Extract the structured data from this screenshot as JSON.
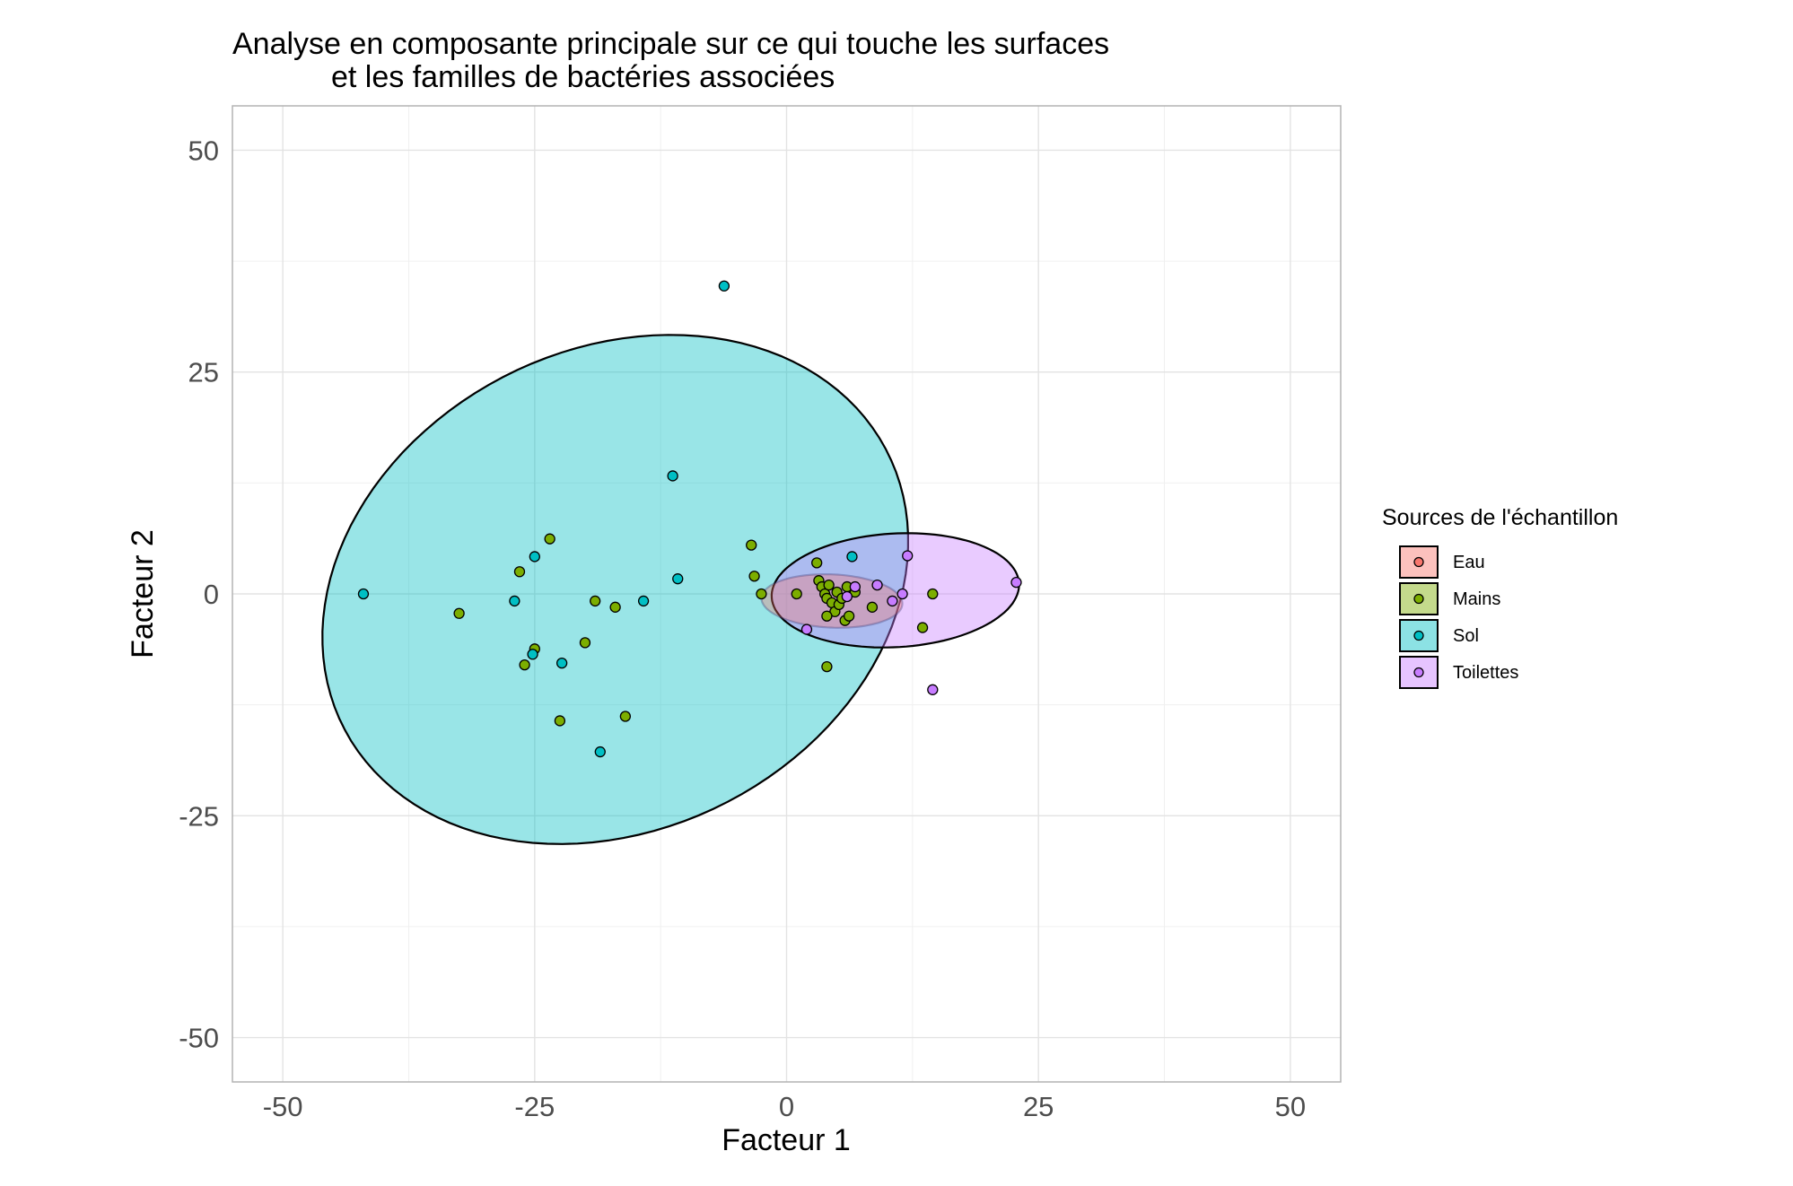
{
  "chart_data": {
    "type": "scatter",
    "title_lines": [
      "Analyse en composante principale sur ce qui touche les surfaces",
      "et les familles de bactéries associées"
    ],
    "xlabel": "Facteur 1",
    "ylabel": "Facteur 2",
    "xlim": [
      -55,
      55
    ],
    "ylim": [
      -55,
      55
    ],
    "xticks": [
      -50,
      -25,
      0,
      25,
      50
    ],
    "yticks": [
      -50,
      -25,
      0,
      25,
      50
    ],
    "grid": true,
    "legend": {
      "title": "Sources de l'échantillon",
      "placement": "right"
    },
    "series": [
      {
        "name": "Eau",
        "color": "#F8766D",
        "points": [],
        "ellipse": {
          "cx": 4.5,
          "cy": -0.8,
          "rx": 7.0,
          "ry": 3.0,
          "angle": -3
        }
      },
      {
        "name": "Mains",
        "color": "#7CAE00",
        "points": [
          [
            -32.5,
            -2.2
          ],
          [
            -26.5,
            2.5
          ],
          [
            -23.5,
            6.2
          ],
          [
            -26.0,
            -8.0
          ],
          [
            -25.0,
            -6.2
          ],
          [
            -22.5,
            -14.3
          ],
          [
            -20.0,
            -5.5
          ],
          [
            -19.0,
            -0.8
          ],
          [
            -17.0,
            -1.5
          ],
          [
            -16.0,
            -13.8
          ],
          [
            -3.5,
            5.5
          ],
          [
            -3.2,
            2.0
          ],
          [
            -2.5,
            0.0
          ],
          [
            1.0,
            0.0
          ],
          [
            3.0,
            3.5
          ],
          [
            3.2,
            1.5
          ],
          [
            3.5,
            0.8
          ],
          [
            3.8,
            0.0
          ],
          [
            4.0,
            -0.5
          ],
          [
            4.2,
            1.0
          ],
          [
            4.5,
            -1.0
          ],
          [
            4.8,
            -2.0
          ],
          [
            5.0,
            0.2
          ],
          [
            5.2,
            -1.2
          ],
          [
            5.5,
            -0.5
          ],
          [
            5.8,
            -3.0
          ],
          [
            6.0,
            0.8
          ],
          [
            6.2,
            -2.5
          ],
          [
            6.8,
            0.2
          ],
          [
            4.0,
            -2.5
          ],
          [
            8.5,
            -1.5
          ],
          [
            13.5,
            -3.8
          ],
          [
            14.5,
            0.0
          ],
          [
            4.0,
            -8.2
          ]
        ]
      },
      {
        "name": "Sol",
        "color": "#00BFC4",
        "points": [
          [
            -42.0,
            0.0
          ],
          [
            -27.0,
            -0.8
          ],
          [
            -25.0,
            4.2
          ],
          [
            -25.2,
            -6.8
          ],
          [
            -22.3,
            -7.8
          ],
          [
            -18.5,
            -17.8
          ],
          [
            -14.2,
            -0.8
          ],
          [
            -11.3,
            13.3
          ],
          [
            -10.8,
            1.7
          ],
          [
            -6.2,
            34.7
          ],
          [
            6.5,
            4.2
          ]
        ],
        "ellipse": {
          "cx": -17.0,
          "cy": 0.5,
          "rx": 31.5,
          "ry": 26.0,
          "angle": 43
        }
      },
      {
        "name": "Toilettes",
        "color": "#C77CFF",
        "points": [
          [
            12.0,
            4.3
          ],
          [
            9.0,
            1.0
          ],
          [
            6.8,
            0.8
          ],
          [
            11.5,
            0.0
          ],
          [
            10.5,
            -0.8
          ],
          [
            2.0,
            -4.0
          ],
          [
            14.5,
            -10.8
          ],
          [
            22.8,
            1.3
          ],
          [
            6.0,
            -0.3
          ]
        ],
        "ellipse": {
          "cx": 10.8,
          "cy": 0.4,
          "rx": 12.3,
          "ry": 6.4,
          "angle": 4
        }
      }
    ]
  }
}
